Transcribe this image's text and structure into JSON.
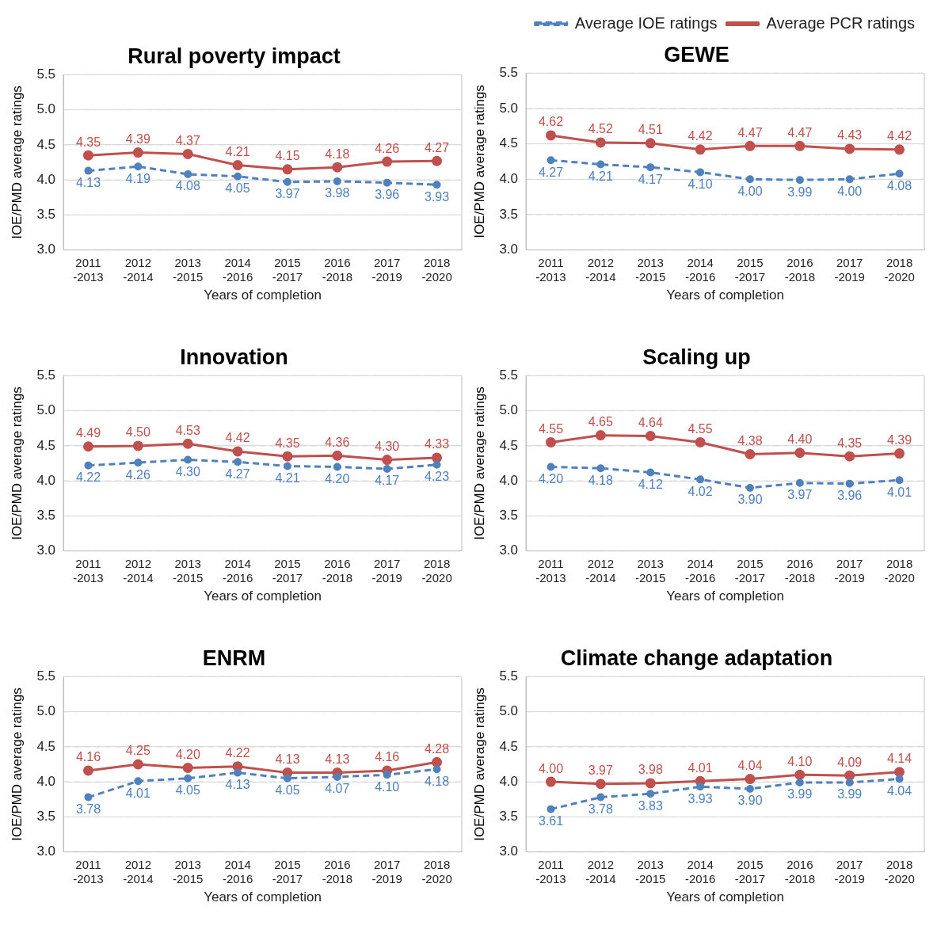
{
  "chart_data": [
    {
      "type": "line",
      "title": "Rural poverty impact",
      "xlabel": "Years of completion",
      "ylabel": "IOE/PMD average ratings",
      "categories": [
        "2011 -2013",
        "2012 -2014",
        "2013 -2015",
        "2014 -2016",
        "2015 -2017",
        "2016 -2018",
        "2017 -2019",
        "2018 -2020"
      ],
      "ylim": [
        3,
        5.5
      ],
      "yticks": [
        {
          "value": 3,
          "label": "3.0"
        },
        {
          "value": 3.5,
          "label": "3.5"
        },
        {
          "value": 4,
          "label": "4.0"
        },
        {
          "value": 4.5,
          "label": "4.5"
        },
        {
          "value": 5,
          "label": "5.0"
        },
        {
          "value": 5.5,
          "label": "5.5"
        }
      ],
      "grid": "y",
      "legend": false,
      "series": [
        {
          "color": "#4f81bd",
          "line_style": "dashed",
          "marker": "circle",
          "values": [
            4.13,
            4.19,
            4.08,
            4.05,
            3.97,
            3.98,
            3.96,
            3.93
          ],
          "value_labels": [
            "4.13",
            "4.19",
            "4.08",
            "4.05",
            "3.97",
            "3.98",
            "3.96",
            "3.93"
          ]
        },
        {
          "color": "#c0504d",
          "line_style": "solid",
          "marker": "circle",
          "values": [
            4.35,
            4.39,
            4.37,
            4.21,
            4.15,
            4.18,
            4.26,
            4.27
          ],
          "value_labels": [
            "4.35",
            "4.39",
            "4.37",
            "4.21",
            "4.15",
            "4.18",
            "4.26",
            "4.27"
          ]
        }
      ]
    },
    {
      "type": "line",
      "title": "GEWE",
      "xlabel": "Years of completion",
      "ylabel": "IOE/PMD average ratings",
      "categories": [
        "2011 -2013",
        "2012 -2014",
        "2013 -2015",
        "2014 -2016",
        "2015 -2017",
        "2016 -2018",
        "2017 -2019",
        "2018 -2020"
      ],
      "ylim": [
        3,
        5.5
      ],
      "yticks": [
        {
          "value": 3,
          "label": "3.0"
        },
        {
          "value": 3.5,
          "label": "3.5"
        },
        {
          "value": 4,
          "label": "4.0"
        },
        {
          "value": 4.5,
          "label": "4.5"
        },
        {
          "value": 5,
          "label": "5.0"
        },
        {
          "value": 5.5,
          "label": "5.5"
        }
      ],
      "grid": "y",
      "legend": "top right",
      "series": [
        {
          "name": "Average IOE ratings",
          "color": "#4f81bd",
          "line_style": "dashed",
          "marker": "circle",
          "values": [
            4.27,
            4.21,
            4.17,
            4.1,
            4.0,
            3.99,
            4.0,
            4.08
          ],
          "value_labels": [
            "4.27",
            "4.21",
            "4.17",
            "4.10",
            "4.00",
            "3.99",
            "4.00",
            "4.08"
          ]
        },
        {
          "name": "Average PCR ratings",
          "color": "#c0504d",
          "line_style": "solid",
          "marker": "circle",
          "values": [
            4.62,
            4.52,
            4.51,
            4.42,
            4.47,
            4.47,
            4.43,
            4.42
          ],
          "value_labels": [
            "4.62",
            "4.52",
            "4.51",
            "4.42",
            "4.47",
            "4.47",
            "4.43",
            "4.42"
          ]
        }
      ]
    },
    {
      "type": "line",
      "title": "Innovation",
      "xlabel": "Years of completion",
      "ylabel": "IOE/PMD average ratings",
      "categories": [
        "2011 -2013",
        "2012 -2014",
        "2013 -2015",
        "2014 -2016",
        "2015 -2017",
        "2016 -2018",
        "2017 -2019",
        "2018 -2020"
      ],
      "ylim": [
        3,
        5.5
      ],
      "yticks": [
        {
          "value": 3,
          "label": "3.0"
        },
        {
          "value": 3.5,
          "label": "3.5"
        },
        {
          "value": 4,
          "label": "4.0"
        },
        {
          "value": 4.5,
          "label": "4.5"
        },
        {
          "value": 5,
          "label": "5.0"
        },
        {
          "value": 5.5,
          "label": "5.5"
        }
      ],
      "grid": "y",
      "legend": false,
      "series": [
        {
          "color": "#4f81bd",
          "line_style": "dashed",
          "marker": "circle",
          "values": [
            4.22,
            4.26,
            4.3,
            4.27,
            4.21,
            4.2,
            4.17,
            4.23
          ],
          "value_labels": [
            "4.22",
            "4.26",
            "4.30",
            "4.27",
            "4.21",
            "4.20",
            "4.17",
            "4.23"
          ]
        },
        {
          "color": "#c0504d",
          "line_style": "solid",
          "marker": "circle",
          "values": [
            4.49,
            4.5,
            4.53,
            4.42,
            4.35,
            4.36,
            4.3,
            4.33
          ],
          "value_labels": [
            "4.49",
            "4.50",
            "4.53",
            "4.42",
            "4.35",
            "4.36",
            "4.30",
            "4.33"
          ]
        }
      ]
    },
    {
      "type": "line",
      "title": "Scaling up",
      "xlabel": "Years of completion",
      "ylabel": "IOE/PMD average ratings",
      "categories": [
        "2011 -2013",
        "2012 -2014",
        "2013 -2015",
        "2014 -2016",
        "2015 -2017",
        "2016 -2018",
        "2017 -2019",
        "2018 -2020"
      ],
      "ylim": [
        3,
        5.5
      ],
      "yticks": [
        {
          "value": 3,
          "label": "3.0"
        },
        {
          "value": 3.5,
          "label": "3.5"
        },
        {
          "value": 4,
          "label": "4.0"
        },
        {
          "value": 4.5,
          "label": "4.5"
        },
        {
          "value": 5,
          "label": "5.0"
        },
        {
          "value": 5.5,
          "label": "5.5"
        }
      ],
      "grid": "y",
      "legend": false,
      "series": [
        {
          "color": "#4f81bd",
          "line_style": "dashed",
          "marker": "circle",
          "values": [
            4.2,
            4.18,
            4.12,
            4.02,
            3.9,
            3.97,
            3.96,
            4.01
          ],
          "value_labels": [
            "4.20",
            "4.18",
            "4.12",
            "4.02",
            "3.90",
            "3.97",
            "3.96",
            "4.01"
          ]
        },
        {
          "color": "#c0504d",
          "line_style": "solid",
          "marker": "circle",
          "values": [
            4.55,
            4.65,
            4.64,
            4.55,
            4.38,
            4.4,
            4.35,
            4.39
          ],
          "value_labels": [
            "4.55",
            "4.65",
            "4.64",
            "4.55",
            "4.38",
            "4.40",
            "4.35",
            "4.39"
          ]
        }
      ]
    },
    {
      "type": "line",
      "title": "ENRM",
      "xlabel": "Years of completion",
      "ylabel": "IOE/PMD average ratings",
      "categories": [
        "2011 -2013",
        "2012 -2014",
        "2013 -2015",
        "2014 -2016",
        "2015 -2017",
        "2016 -2018",
        "2017 -2019",
        "2018 -2020"
      ],
      "ylim": [
        3,
        5.5
      ],
      "yticks": [
        {
          "value": 3,
          "label": "3.0"
        },
        {
          "value": 3.5,
          "label": "3.5"
        },
        {
          "value": 4,
          "label": "4.0"
        },
        {
          "value": 4.5,
          "label": "4.5"
        },
        {
          "value": 5,
          "label": "5.0"
        },
        {
          "value": 5.5,
          "label": "5.5"
        }
      ],
      "grid": "y",
      "legend": false,
      "series": [
        {
          "color": "#4f81bd",
          "line_style": "dashed",
          "marker": "circle",
          "values": [
            3.78,
            4.01,
            4.05,
            4.13,
            4.05,
            4.07,
            4.1,
            4.18
          ],
          "value_labels": [
            "3.78",
            "4.01",
            "4.05",
            "4.13",
            "4.05",
            "4.07",
            "4.10",
            "4.18"
          ]
        },
        {
          "color": "#c0504d",
          "line_style": "solid",
          "marker": "circle",
          "values": [
            4.16,
            4.25,
            4.2,
            4.22,
            4.13,
            4.13,
            4.16,
            4.28
          ],
          "value_labels": [
            "4.16",
            "4.25",
            "4.20",
            "4.22",
            "4.13",
            "4.13",
            "4.16",
            "4.28"
          ]
        }
      ]
    },
    {
      "type": "line",
      "title": "Climate change adaptation",
      "xlabel": "Years of completion",
      "ylabel": "IOE/PMD average ratings",
      "categories": [
        "2011 -2013",
        "2012 -2014",
        "2013 -2015",
        "2014 -2016",
        "2015 -2017",
        "2016 -2018",
        "2017 -2019",
        "2018 -2020"
      ],
      "ylim": [
        3,
        5.5
      ],
      "yticks": [
        {
          "value": 3,
          "label": "3.0"
        },
        {
          "value": 3.5,
          "label": "3.5"
        },
        {
          "value": 4,
          "label": "4.0"
        },
        {
          "value": 4.5,
          "label": "4.5"
        },
        {
          "value": 5,
          "label": "5.0"
        },
        {
          "value": 5.5,
          "label": "5.5"
        }
      ],
      "grid": "y",
      "legend": false,
      "series": [
        {
          "color": "#4f81bd",
          "line_style": "dashed",
          "marker": "circle",
          "values": [
            3.61,
            3.78,
            3.83,
            3.93,
            3.9,
            3.99,
            3.99,
            4.04
          ],
          "value_labels": [
            "3.61",
            "3.78",
            "3.83",
            "3.93",
            "3.90",
            "3.99",
            "3.99",
            "4.04"
          ]
        },
        {
          "color": "#c0504d",
          "line_style": "solid",
          "marker": "circle",
          "values": [
            4.0,
            3.97,
            3.98,
            4.01,
            4.04,
            4.1,
            4.09,
            4.14
          ],
          "value_labels": [
            "4.00",
            "3.97",
            "3.98",
            "4.01",
            "4.04",
            "4.10",
            "4.09",
            "4.14"
          ]
        }
      ]
    }
  ]
}
